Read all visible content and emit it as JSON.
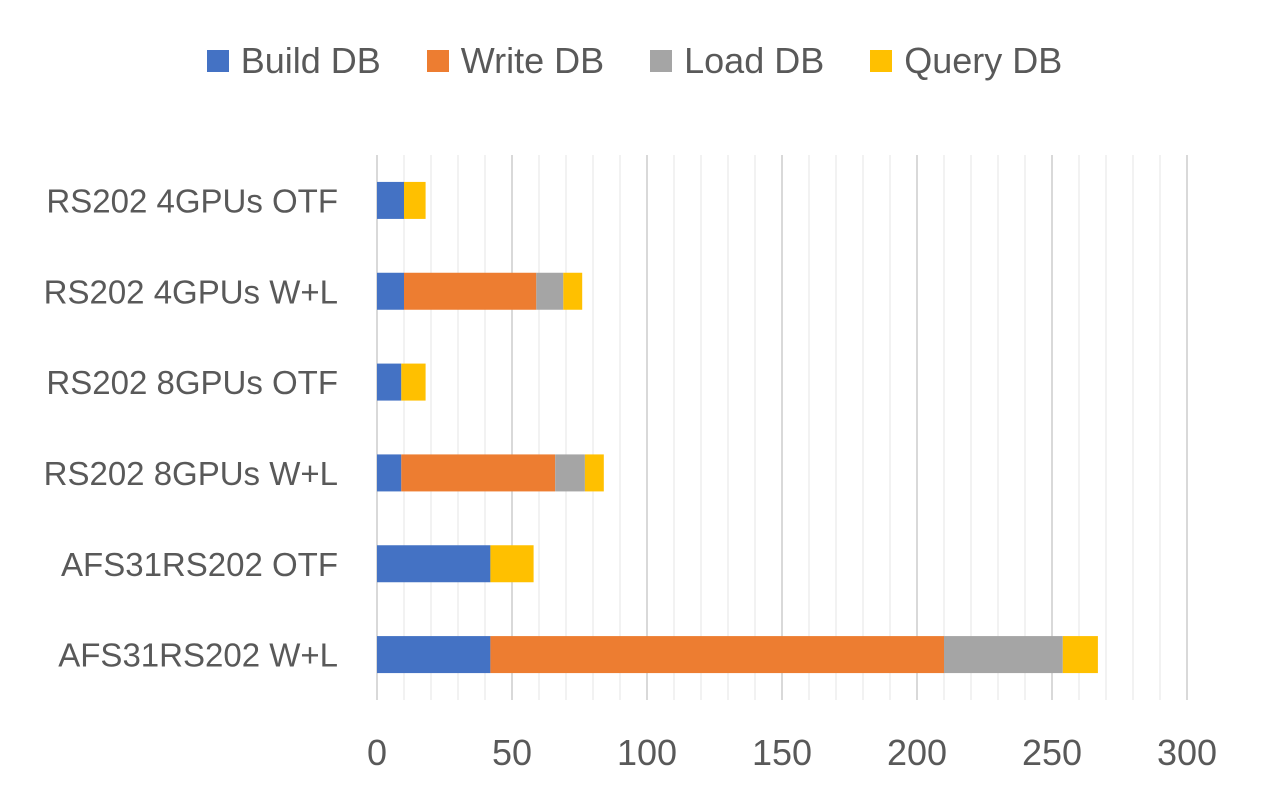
{
  "chart_data": {
    "type": "bar",
    "orientation": "horizontal",
    "stacked": true,
    "title": "",
    "xlabel": "",
    "ylabel": "",
    "categories": [
      "RS202 4GPUs OTF",
      "RS202 4GPUs W+L",
      "RS202 8GPUs OTF",
      "RS202 8GPUs W+L",
      "AFS31RS202 OTF",
      "AFS31RS202 W+L"
    ],
    "series": [
      {
        "name": "Build DB",
        "color": "#4472C4",
        "values": [
          10,
          10,
          9,
          9,
          42,
          42
        ]
      },
      {
        "name": "Write DB",
        "color": "#ED7D31",
        "values": [
          0,
          49,
          0,
          57,
          0,
          168
        ]
      },
      {
        "name": "Load DB",
        "color": "#A5A5A5",
        "values": [
          0,
          10,
          0,
          11,
          0,
          44
        ]
      },
      {
        "name": "Query DB",
        "color": "#FFC000",
        "values": [
          8,
          7,
          9,
          7,
          16,
          13
        ]
      }
    ],
    "xlim": [
      0,
      300
    ],
    "xticks": [
      "0",
      "50",
      "100",
      "150",
      "200",
      "250",
      "300"
    ],
    "minor_grid_step": 10,
    "legend_position": "top"
  }
}
